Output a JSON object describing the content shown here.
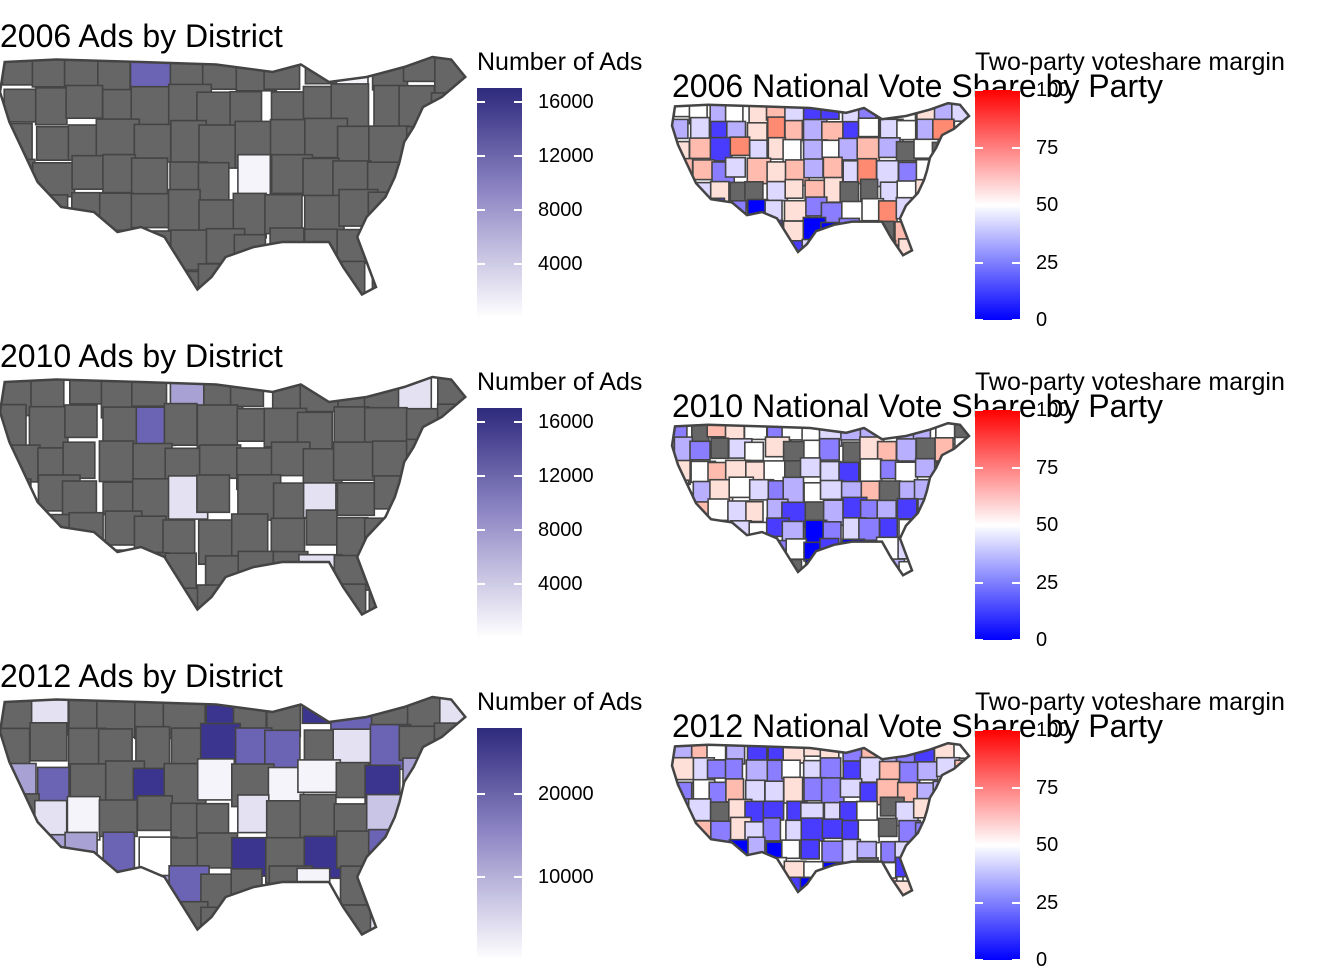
{
  "colors": {
    "district_default": "#666666",
    "district_border": "#444444",
    "ads_low": "#ffffff",
    "ads_high": "#2e2a7d",
    "vote_low": "#0000ff",
    "vote_mid": "#ffffff",
    "vote_high": "#ff0000"
  },
  "panels": [
    {
      "ads": {
        "title": "2006 Ads by District",
        "legend_title": "Number of Ads",
        "ticks": [
          "16000",
          "12000",
          "8000",
          "4000"
        ],
        "tick_values": [
          16000,
          12000,
          8000,
          4000
        ],
        "max": 17000
      },
      "vote": {
        "title": "2006 National Vote Share by Party",
        "legend_title": "Two-party voteshare margin",
        "ticks": [
          "100",
          "75",
          "50",
          "25",
          "0"
        ],
        "tick_values": [
          100,
          75,
          50,
          25,
          0
        ]
      }
    },
    {
      "ads": {
        "title": "2010 Ads by District",
        "legend_title": "Number of Ads",
        "ticks": [
          "16000",
          "12000",
          "8000",
          "4000"
        ],
        "tick_values": [
          16000,
          12000,
          8000,
          4000
        ],
        "max": 17000
      },
      "vote": {
        "title": "2010 National Vote Share by Party",
        "legend_title": "Two-party voteshare margin",
        "ticks": [
          "100",
          "75",
          "50",
          "25",
          "0"
        ],
        "tick_values": [
          100,
          75,
          50,
          25,
          0
        ]
      }
    },
    {
      "ads": {
        "title": "2012 Ads by District",
        "legend_title": "Number of Ads",
        "ticks": [
          "20000",
          "10000"
        ],
        "tick_values": [
          20000,
          10000
        ],
        "max": 28000
      },
      "vote": {
        "title": "2012 National Vote Share by Party",
        "legend_title": "Two-party voteshare margin",
        "ticks": [
          "100",
          "75",
          "50",
          "25",
          "0"
        ],
        "tick_values": [
          100,
          75,
          50,
          25,
          0
        ]
      }
    }
  ]
}
